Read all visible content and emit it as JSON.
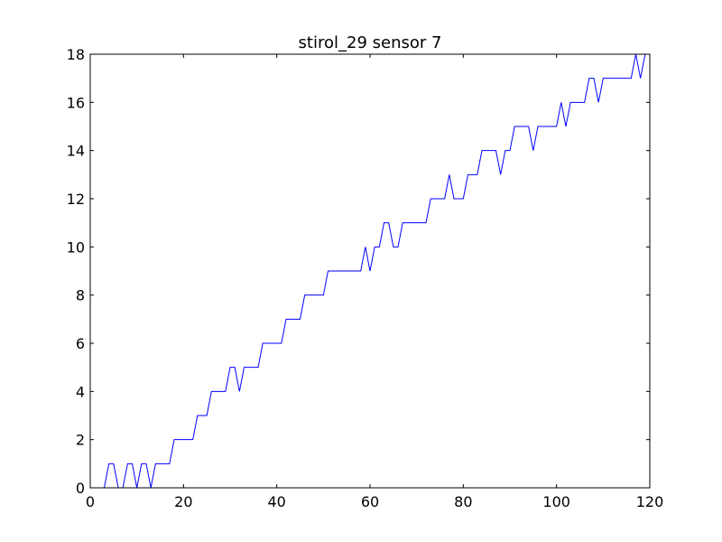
{
  "chart_data": {
    "type": "line",
    "title": "stirol_29 sensor 7",
    "xlabel": "",
    "ylabel": "",
    "xlim": [
      0,
      120
    ],
    "ylim": [
      0,
      18
    ],
    "x_ticks": [
      0,
      20,
      40,
      60,
      80,
      100,
      120
    ],
    "y_ticks": [
      0,
      2,
      4,
      6,
      8,
      10,
      12,
      14,
      16,
      18
    ],
    "grid": false,
    "line_color": "#0000ff",
    "series": [
      {
        "x": [
          0,
          1,
          2,
          3,
          4,
          5,
          6,
          7,
          8,
          9,
          10,
          11,
          12,
          13,
          14,
          15,
          16,
          17,
          18,
          19,
          20,
          21,
          22,
          23,
          24,
          25,
          26,
          27,
          28,
          29,
          30,
          31,
          32,
          33,
          34,
          35,
          36,
          37,
          38,
          39,
          40,
          41,
          42,
          43,
          44,
          45,
          46,
          47,
          48,
          49,
          50,
          51,
          52,
          53,
          54,
          55,
          56,
          57,
          58,
          59,
          60,
          61,
          62,
          63,
          64,
          65,
          66,
          67,
          68,
          69,
          70,
          71,
          72,
          73,
          74,
          75,
          76,
          77,
          78,
          79,
          80,
          81,
          82,
          83,
          84,
          85,
          86,
          87,
          88,
          89,
          90,
          91,
          92,
          93,
          94,
          95,
          96,
          97,
          98,
          99,
          100,
          101,
          102,
          103,
          104,
          105,
          106,
          107,
          108,
          109,
          110,
          111,
          112,
          113,
          114,
          115,
          116,
          117,
          118,
          119,
          120
        ],
        "y": [
          0,
          0,
          0,
          0,
          1,
          1,
          0,
          0,
          1,
          1,
          0,
          1,
          1,
          0,
          1,
          1,
          1,
          1,
          2,
          2,
          2,
          2,
          2,
          3,
          3,
          3,
          4,
          4,
          4,
          4,
          5,
          5,
          4,
          5,
          5,
          5,
          5,
          6,
          6,
          6,
          6,
          6,
          7,
          7,
          7,
          7,
          8,
          8,
          8,
          8,
          8,
          9,
          9,
          9,
          9,
          9,
          9,
          9,
          9,
          10,
          9,
          10,
          10,
          11,
          11,
          10,
          10,
          11,
          11,
          11,
          11,
          11,
          11,
          12,
          12,
          12,
          12,
          13,
          12,
          12,
          12,
          13,
          13,
          13,
          14,
          14,
          14,
          14,
          13,
          14,
          14,
          15,
          15,
          15,
          15,
          14,
          15,
          15,
          15,
          15,
          15,
          16,
          15,
          16,
          16,
          16,
          16,
          17,
          17,
          16,
          17,
          17,
          17,
          17,
          17,
          17,
          17,
          18,
          17,
          18,
          18
        ]
      }
    ]
  }
}
